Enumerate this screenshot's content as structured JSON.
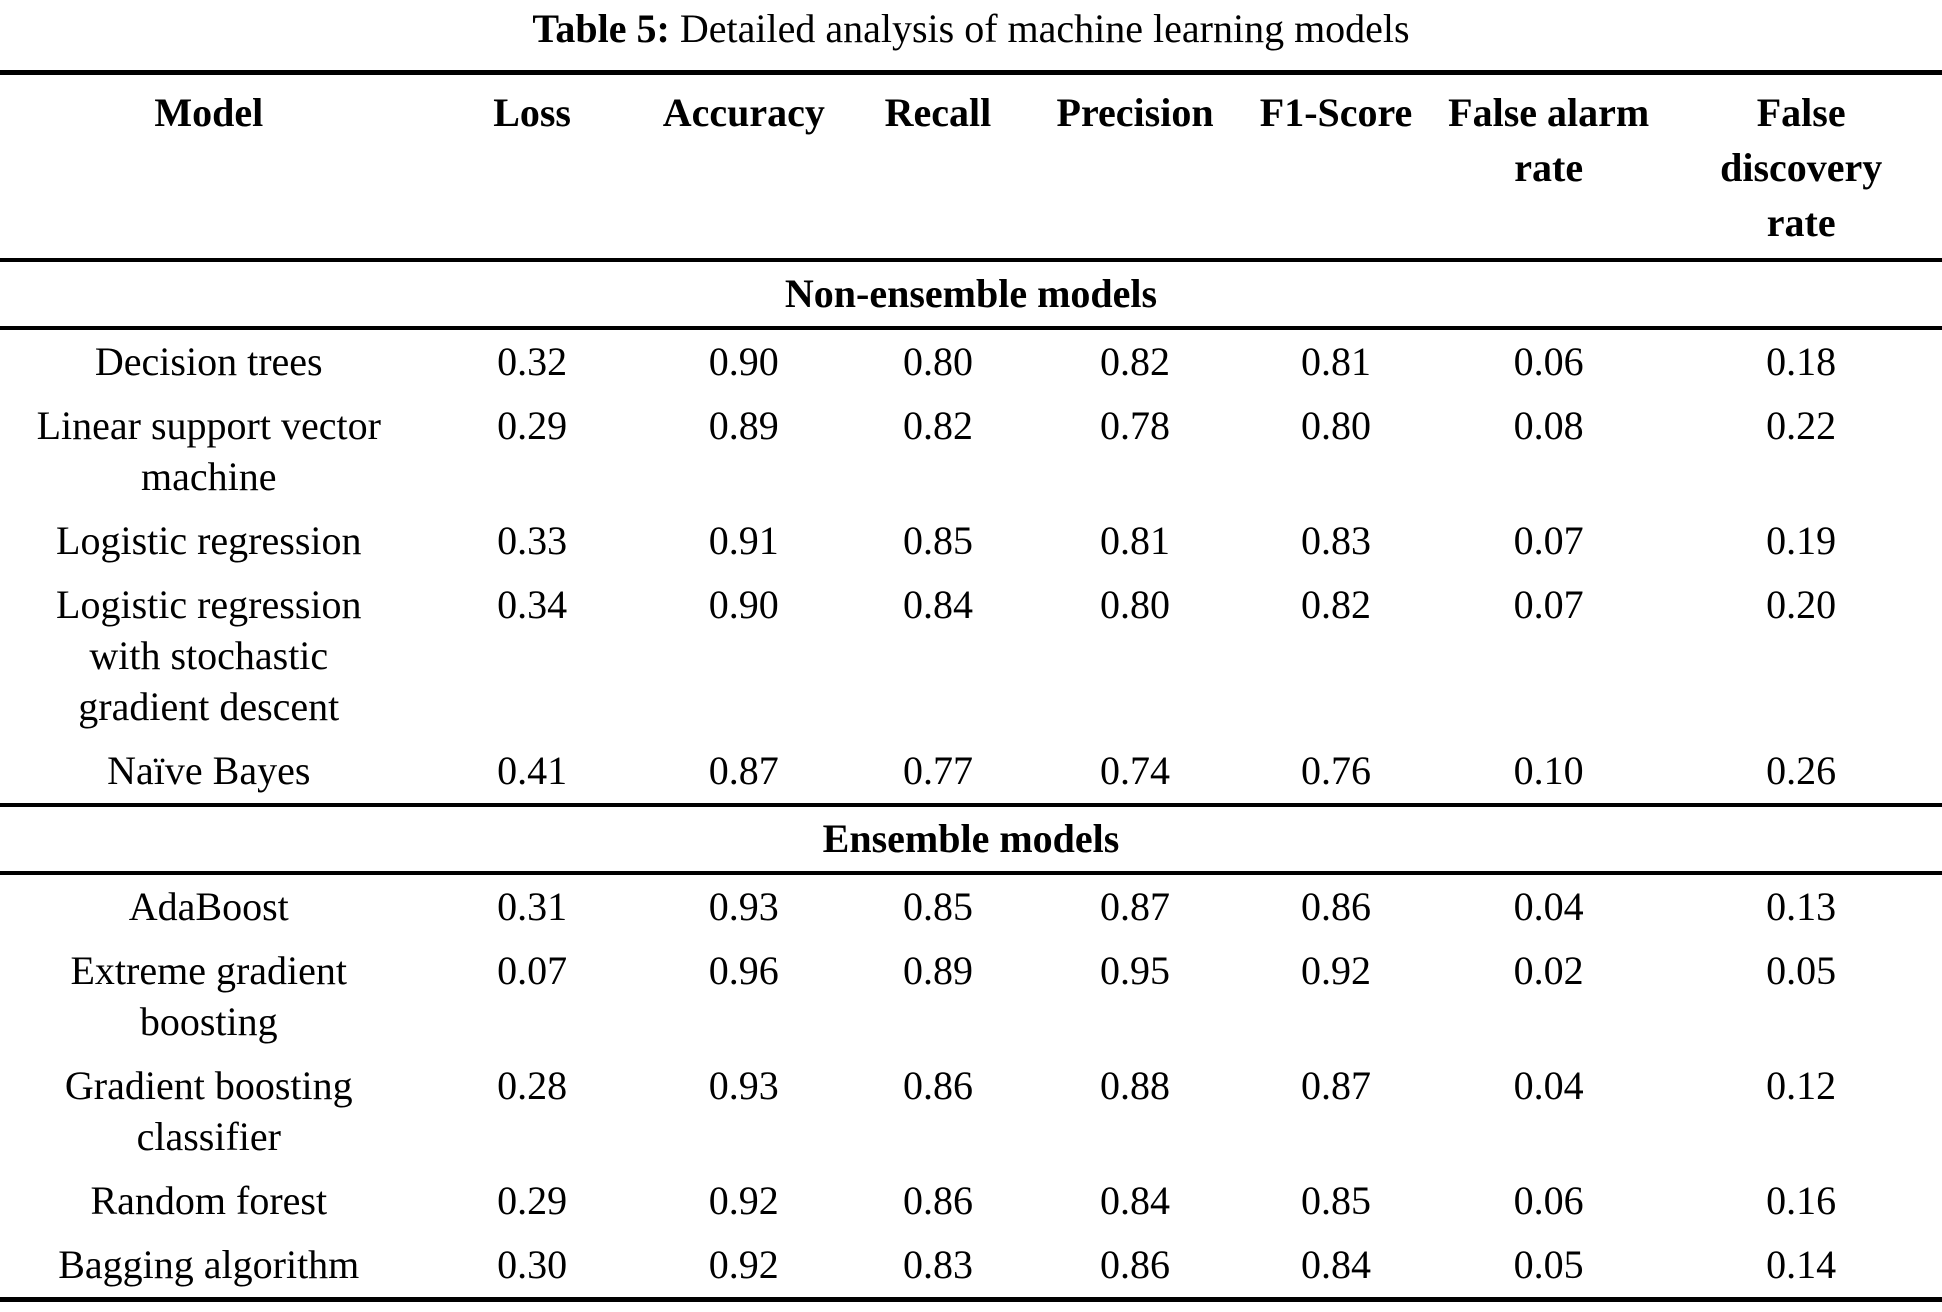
{
  "caption": {
    "label": "Table 5:",
    "text": "Detailed analysis of machine learning models"
  },
  "table": {
    "headers": [
      "Model",
      "Loss",
      "Accuracy",
      "Recall",
      "Precision",
      "F1-Score",
      "False alarm\nrate",
      "False\ndiscovery\nrate"
    ],
    "sections": [
      {
        "title": "Non-ensemble models",
        "rows": [
          {
            "model": "Decision trees",
            "values": [
              "0.32",
              "0.90",
              "0.80",
              "0.82",
              "0.81",
              "0.06",
              "0.18"
            ]
          },
          {
            "model": "Linear support vector\nmachine",
            "values": [
              "0.29",
              "0.89",
              "0.82",
              "0.78",
              "0.80",
              "0.08",
              "0.22"
            ]
          },
          {
            "model": "Logistic regression",
            "values": [
              "0.33",
              "0.91",
              "0.85",
              "0.81",
              "0.83",
              "0.07",
              "0.19"
            ]
          },
          {
            "model": "Logistic regression\nwith stochastic\ngradient descent",
            "values": [
              "0.34",
              "0.90",
              "0.84",
              "0.80",
              "0.82",
              "0.07",
              "0.20"
            ]
          },
          {
            "model": "Naïve Bayes",
            "values": [
              "0.41",
              "0.87",
              "0.77",
              "0.74",
              "0.76",
              "0.10",
              "0.26"
            ]
          }
        ]
      },
      {
        "title": "Ensemble models",
        "rows": [
          {
            "model": "AdaBoost",
            "values": [
              "0.31",
              "0.93",
              "0.85",
              "0.87",
              "0.86",
              "0.04",
              "0.13"
            ]
          },
          {
            "model": "Extreme gradient\nboosting",
            "values": [
              "0.07",
              "0.96",
              "0.89",
              "0.95",
              "0.92",
              "0.02",
              "0.05"
            ]
          },
          {
            "model": "Gradient boosting\nclassifier",
            "values": [
              "0.28",
              "0.93",
              "0.86",
              "0.88",
              "0.87",
              "0.04",
              "0.12"
            ]
          },
          {
            "model": "Random forest",
            "values": [
              "0.29",
              "0.92",
              "0.86",
              "0.84",
              "0.85",
              "0.06",
              "0.16"
            ]
          },
          {
            "model": "Bagging algorithm",
            "values": [
              "0.30",
              "0.92",
              "0.83",
              "0.86",
              "0.84",
              "0.05",
              "0.14"
            ]
          }
        ]
      }
    ]
  }
}
